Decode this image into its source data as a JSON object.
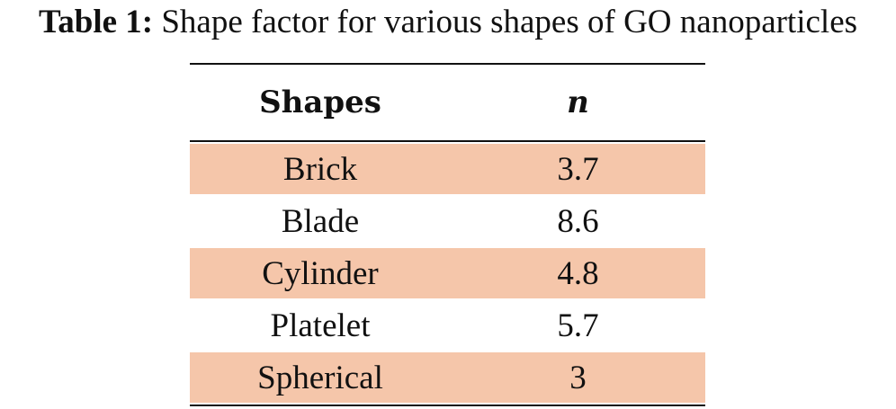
{
  "caption": {
    "label": "Table 1:",
    "text": " Shape factor for various shapes of GO nanoparticles"
  },
  "table": {
    "headers": {
      "shape": "Shapes",
      "n": "n"
    },
    "rows": [
      {
        "shape": "Brick",
        "n": "3.7"
      },
      {
        "shape": "Blade",
        "n": "8.6"
      },
      {
        "shape": "Cylinder",
        "n": "4.8"
      },
      {
        "shape": "Platelet",
        "n": "5.7"
      },
      {
        "shape": "Spherical",
        "n": "3"
      }
    ],
    "shade_color": "#f5c6aa"
  }
}
